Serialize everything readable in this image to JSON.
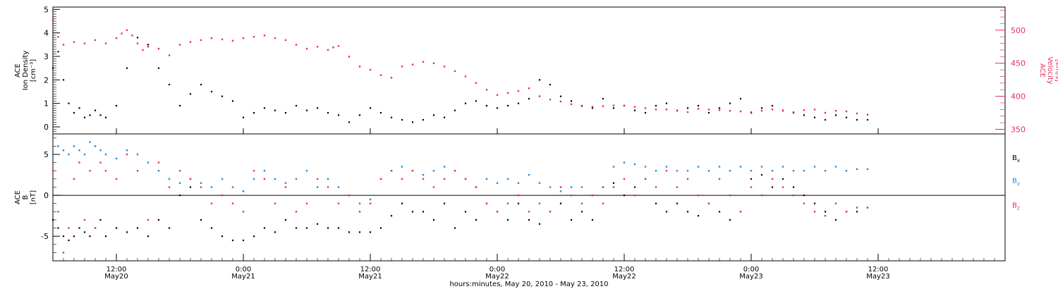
{
  "colors": {
    "density": "#000000",
    "velocity": "#e8305e",
    "bx": "#000000",
    "by": "#1e8be0",
    "bz": "#e8305e",
    "axis": "#000000"
  },
  "x_axis": {
    "title": "hours:minutes, May 20, 2010 - May 23, 2010",
    "range_hours": [
      6,
      96
    ],
    "ticks": [
      {
        "hour": 12,
        "time": "12:00",
        "day": "May20"
      },
      {
        "hour": 24,
        "time": "0:00",
        "day": "May21"
      },
      {
        "hour": 36,
        "time": "12:00",
        "day": "May21"
      },
      {
        "hour": 48,
        "time": "0:00",
        "day": "May22"
      },
      {
        "hour": 60,
        "time": "12:00",
        "day": "May22"
      },
      {
        "hour": 72,
        "time": "0:00",
        "day": "May23"
      },
      {
        "hour": 84,
        "time": "12:00",
        "day": "May23"
      }
    ]
  },
  "chart_data": [
    {
      "type": "scatter",
      "panel": "top",
      "left_axis": {
        "label_lines": [
          "ACE",
          "Ion Density",
          "[cm⁻³]"
        ],
        "ticks": [
          "0",
          "1",
          "2",
          "3",
          "4",
          "5"
        ],
        "ylim": [
          -0.3,
          5.1
        ]
      },
      "right_axis": {
        "label_lines": [
          "ACE",
          "Velocity",
          "[km/s]"
        ],
        "ticks": [
          "350",
          "400",
          "450",
          "500"
        ],
        "ylim": [
          343,
          535
        ]
      },
      "series": [
        {
          "key": "density",
          "axis": "left",
          "x": [
            6,
            6.5,
            7,
            7.5,
            8,
            8.5,
            9,
            9.5,
            10,
            10.5,
            11,
            12,
            13,
            14,
            15,
            16,
            17,
            18,
            19,
            20,
            21,
            22,
            23,
            24,
            25,
            26,
            27,
            28,
            29,
            30,
            31,
            32,
            33,
            34,
            35,
            36,
            37,
            38,
            39,
            40,
            41,
            42,
            43,
            44,
            45,
            46,
            47,
            48,
            49,
            50,
            51,
            52,
            53,
            54,
            55,
            56,
            57,
            58,
            59,
            60,
            61,
            62,
            63,
            64,
            65,
            66,
            67,
            68,
            69,
            70,
            71,
            72,
            73,
            74,
            75,
            76,
            77,
            78,
            79,
            80,
            81,
            82,
            83
          ],
          "y": [
            2.5,
            3.2,
            2.0,
            1.0,
            0.6,
            0.8,
            0.4,
            0.5,
            0.7,
            0.5,
            0.4,
            0.9,
            2.5,
            3.8,
            3.5,
            2.5,
            1.8,
            0.9,
            1.4,
            1.8,
            1.5,
            1.3,
            1.1,
            0.4,
            0.6,
            0.8,
            0.7,
            0.6,
            0.9,
            0.7,
            0.8,
            0.6,
            0.5,
            0.2,
            0.5,
            0.8,
            0.6,
            0.4,
            0.3,
            0.2,
            0.3,
            0.5,
            0.4,
            0.7,
            1.0,
            1.1,
            0.9,
            0.8,
            0.9,
            1.0,
            1.2,
            2.0,
            1.8,
            1.3,
            1.1,
            0.9,
            0.8,
            1.2,
            0.8,
            0.9,
            0.7,
            0.6,
            0.9,
            1.0,
            0.7,
            0.8,
            0.9,
            0.6,
            0.8,
            1.0,
            1.2,
            0.6,
            0.8,
            0.9,
            0.7,
            0.6,
            0.5,
            0.4,
            0.3,
            0.5,
            0.4,
            0.3,
            0.3
          ]
        },
        {
          "key": "velocity",
          "axis": "right",
          "x": [
            6,
            6.5,
            7,
            8,
            9,
            10,
            11,
            12,
            12.5,
            13,
            13.5,
            14,
            14.5,
            15,
            16,
            17,
            18,
            19,
            20,
            21,
            22,
            23,
            24,
            25,
            26,
            27,
            28,
            29,
            30,
            31,
            32,
            32.5,
            33,
            34,
            35,
            36,
            37,
            38,
            39,
            40,
            41,
            42,
            43,
            44,
            45,
            46,
            47,
            48,
            49,
            50,
            51,
            52,
            53,
            54,
            55,
            56,
            57,
            58,
            59,
            60,
            61,
            62,
            63,
            64,
            65,
            66,
            67,
            68,
            69,
            70,
            71,
            72,
            73,
            74,
            75,
            76,
            77,
            78,
            79,
            80,
            81,
            82,
            83
          ],
          "y": [
            515,
            490,
            478,
            482,
            480,
            485,
            480,
            488,
            495,
            500,
            492,
            480,
            470,
            475,
            472,
            462,
            478,
            482,
            485,
            488,
            486,
            484,
            488,
            490,
            492,
            488,
            485,
            478,
            472,
            475,
            470,
            474,
            476,
            460,
            445,
            440,
            432,
            428,
            445,
            448,
            452,
            450,
            445,
            438,
            430,
            420,
            410,
            402,
            405,
            408,
            412,
            400,
            395,
            392,
            388,
            385,
            384,
            385,
            386,
            386,
            384,
            382,
            380,
            380,
            378,
            376,
            381,
            380,
            379,
            378,
            377,
            376,
            378,
            380,
            378,
            376,
            379,
            380,
            375,
            378,
            377,
            374,
            372
          ]
        }
      ]
    },
    {
      "type": "scatter",
      "panel": "bottom",
      "left_axis": {
        "label_lines": [
          "ACE",
          "B",
          "[nT]"
        ],
        "ticks": [
          "-5",
          "0",
          "5"
        ],
        "ylim": [
          -8,
          7.5
        ]
      },
      "legend": {
        "placement": "right",
        "labels": [
          "Bx",
          "By",
          "Bz"
        ]
      },
      "series": [
        {
          "key": "bx",
          "x": [
            6,
            6.5,
            7,
            7.5,
            8,
            8.5,
            9,
            9.5,
            10,
            10.5,
            11,
            12,
            13,
            14,
            15,
            16,
            17,
            18,
            19,
            20,
            21,
            22,
            23,
            24,
            25,
            26,
            27,
            28,
            29,
            30,
            31,
            32,
            33,
            34,
            35,
            36,
            37,
            38,
            39,
            40,
            41,
            42,
            43,
            44,
            45,
            46,
            47,
            48,
            49,
            50,
            51,
            52,
            53,
            54,
            55,
            56,
            57,
            58,
            59,
            60,
            61,
            62,
            63,
            64,
            65,
            66,
            67,
            68,
            69,
            70,
            71,
            72,
            73,
            74,
            75,
            76,
            77,
            78,
            79,
            80,
            81,
            82,
            83
          ],
          "y": [
            -3,
            -4,
            -5,
            -5.5,
            -5,
            -4,
            -4.5,
            -5,
            -4,
            -3,
            -5,
            -4,
            -4.5,
            -4,
            -5,
            -3,
            -4,
            0,
            1,
            -3,
            -4,
            -5,
            -5.5,
            -5.5,
            -5,
            -4,
            -4.5,
            -3,
            -4,
            -4,
            -3.5,
            -4,
            -4,
            -4.5,
            -4.5,
            -4.5,
            -4,
            -2.5,
            -1,
            -2,
            -2,
            -3,
            -1,
            -4,
            -2,
            -3,
            -1,
            -2,
            -3,
            -1,
            -3,
            -3.5,
            -2,
            -1,
            -3,
            -2,
            -3,
            1,
            1.5,
            0,
            1,
            2,
            -1,
            -2,
            -1,
            -2,
            -2.5,
            -1,
            -2,
            -3,
            -2,
            2,
            2.5,
            1,
            2,
            1,
            0,
            -1,
            -2,
            -3,
            -2,
            -2,
            -1.5
          ]
        },
        {
          "key": "by",
          "x": [
            6,
            6.5,
            7,
            7.5,
            8,
            8.5,
            9,
            9.5,
            10,
            10.5,
            11,
            12,
            13,
            14,
            15,
            16,
            17,
            18,
            19,
            20,
            21,
            22,
            23,
            24,
            25,
            26,
            27,
            28,
            29,
            30,
            31,
            32,
            33,
            34,
            35,
            36,
            37,
            38,
            39,
            40,
            41,
            42,
            43,
            44,
            45,
            46,
            47,
            48,
            49,
            50,
            51,
            52,
            53,
            54,
            55,
            56,
            57,
            58,
            59,
            60,
            61,
            62,
            63,
            64,
            65,
            66,
            67,
            68,
            69,
            70,
            71,
            72,
            73,
            74,
            75,
            76,
            77,
            78,
            79,
            80,
            81,
            82,
            83
          ],
          "y": [
            5,
            6,
            5.5,
            5,
            6,
            5.5,
            5,
            6.5,
            6,
            5.5,
            5,
            4.5,
            5.5,
            5,
            4,
            3,
            2,
            1.5,
            2,
            1.5,
            1,
            2,
            1,
            0.5,
            2,
            3,
            2,
            1.5,
            2,
            3,
            1,
            2,
            1,
            0,
            -1,
            -0.5,
            2,
            3,
            3.5,
            3,
            2.5,
            3,
            3.5,
            3,
            2,
            1,
            2,
            1.5,
            2,
            1.5,
            2.5,
            1.5,
            1,
            0.5,
            1,
            1,
            0,
            1,
            3.5,
            4,
            3.8,
            3.5,
            3,
            3.5,
            3,
            3,
            3.5,
            3,
            3.5,
            3,
            3.5,
            3,
            3.5,
            3,
            3.5,
            3,
            3,
            3.5,
            3,
            3.5,
            3,
            3.2,
            3.2
          ]
        },
        {
          "key": "bz",
          "x": [
            6,
            6.5,
            7,
            7.5,
            8,
            8.5,
            9,
            9.5,
            10,
            10.5,
            11,
            12,
            13,
            14,
            15,
            16,
            17,
            18,
            19,
            20,
            21,
            22,
            23,
            24,
            25,
            26,
            27,
            28,
            29,
            30,
            31,
            32,
            33,
            34,
            35,
            36,
            37,
            38,
            39,
            40,
            41,
            42,
            43,
            44,
            45,
            46,
            47,
            48,
            49,
            50,
            51,
            52,
            53,
            54,
            55,
            56,
            57,
            58,
            59,
            60,
            61,
            62,
            63,
            64,
            65,
            66,
            67,
            68,
            69,
            70,
            71,
            72,
            73,
            74,
            75,
            76,
            77,
            78,
            79,
            80,
            81,
            82,
            83
          ],
          "y": [
            3,
            -2,
            -7,
            -4,
            2,
            4,
            -3,
            3,
            -4,
            4,
            3,
            2,
            5,
            3,
            -3,
            4,
            1,
            3,
            2,
            1,
            -1,
            0,
            -1,
            -2,
            3,
            2,
            -1,
            1,
            -2,
            -1,
            2,
            1,
            -1,
            0,
            -2,
            -1,
            2,
            3,
            2,
            3,
            2,
            1,
            2,
            3,
            2,
            1,
            -1,
            -2,
            -1,
            0,
            -2,
            -1,
            -2,
            1,
            0,
            -1,
            0,
            -1,
            1,
            2,
            0,
            2,
            1,
            3,
            1,
            2,
            0,
            -1,
            2,
            0,
            -2,
            1,
            0,
            2,
            1,
            0,
            -1,
            -2,
            -2.5,
            -1,
            -2,
            -1.5,
            -1.5
          ]
        }
      ]
    }
  ]
}
